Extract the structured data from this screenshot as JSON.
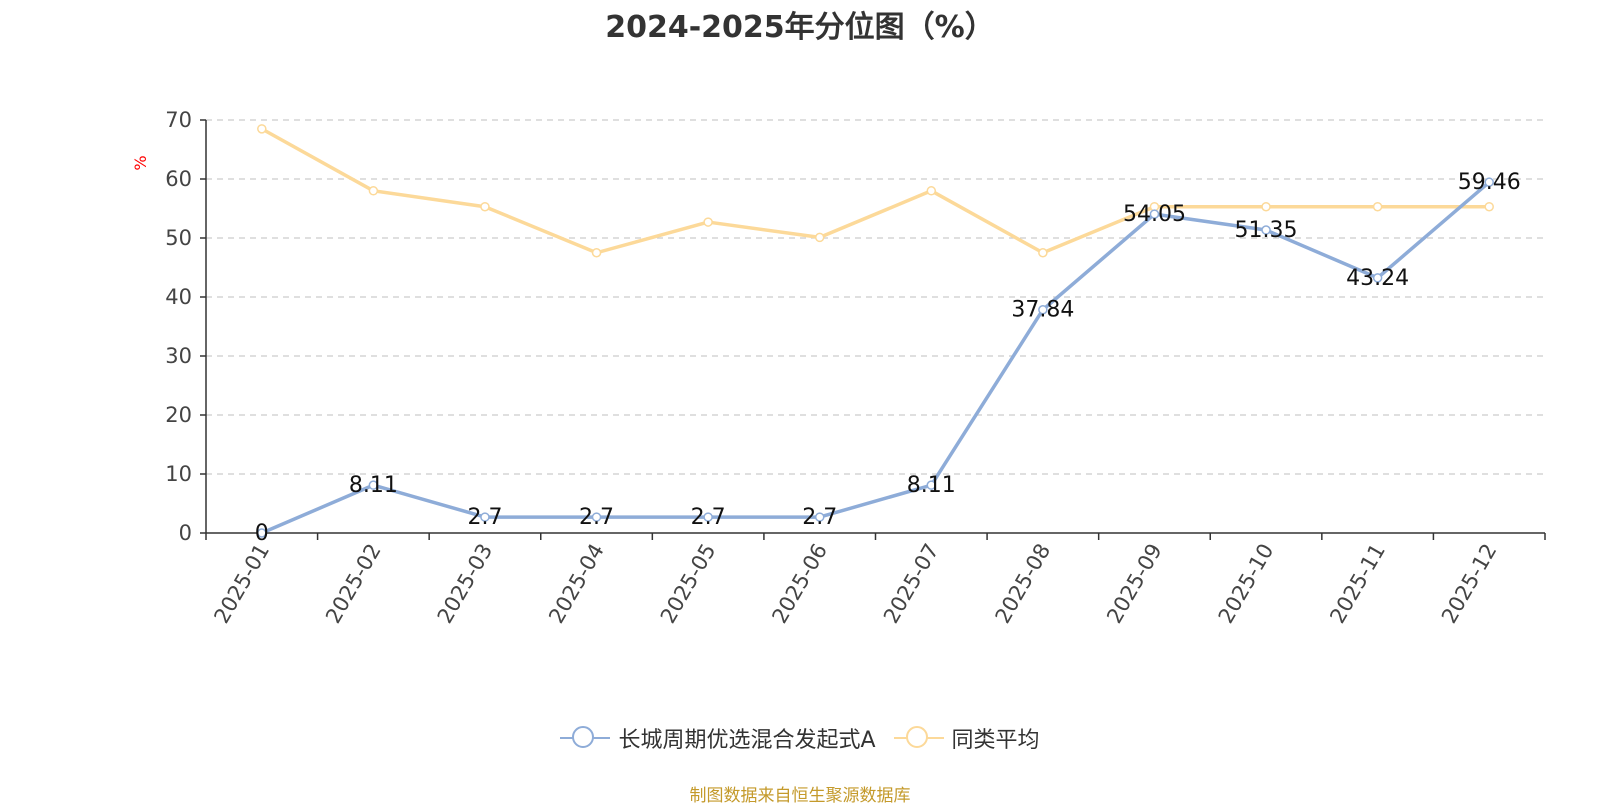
{
  "title": "2024-2025年分位图（%）",
  "source": "制图数据来自恒生聚源数据库",
  "colors": {
    "series1": "#8eacd8",
    "series2": "#fcd999",
    "unit_label": "#ff0000",
    "source": "#c49a2b",
    "grid": "#cccccc",
    "axis": "#333333"
  },
  "chart_data": {
    "type": "line",
    "title": "2024-2025年分位图（%）",
    "ylabel": "%",
    "xlabel": "",
    "ylim": [
      0,
      70
    ],
    "yticks": [
      0,
      10,
      20,
      30,
      40,
      50,
      60,
      70
    ],
    "grid": true,
    "legend_position": "bottom-center",
    "categories": [
      "2025-01",
      "2025-02",
      "2025-03",
      "2025-04",
      "2025-05",
      "2025-06",
      "2025-07",
      "2025-08",
      "2025-09",
      "2025-10",
      "2025-11",
      "2025-12"
    ],
    "series": [
      {
        "name": "长城周期优选混合发起式A",
        "values": [
          0,
          8.11,
          2.7,
          2.7,
          2.7,
          2.7,
          8.11,
          37.84,
          54.05,
          51.35,
          43.24,
          59.46
        ],
        "data_labels": [
          "0",
          "8.11",
          "2.7",
          "2.7",
          "2.7",
          "2.7",
          "8.11",
          "37.84",
          "54.05",
          "51.35",
          "43.24",
          "59.46"
        ]
      },
      {
        "name": "同类平均",
        "values": [
          68.5,
          58,
          55.3,
          47.5,
          52.7,
          50.1,
          58,
          47.5,
          55.3,
          55.3,
          55.3,
          55.3
        ]
      }
    ]
  }
}
